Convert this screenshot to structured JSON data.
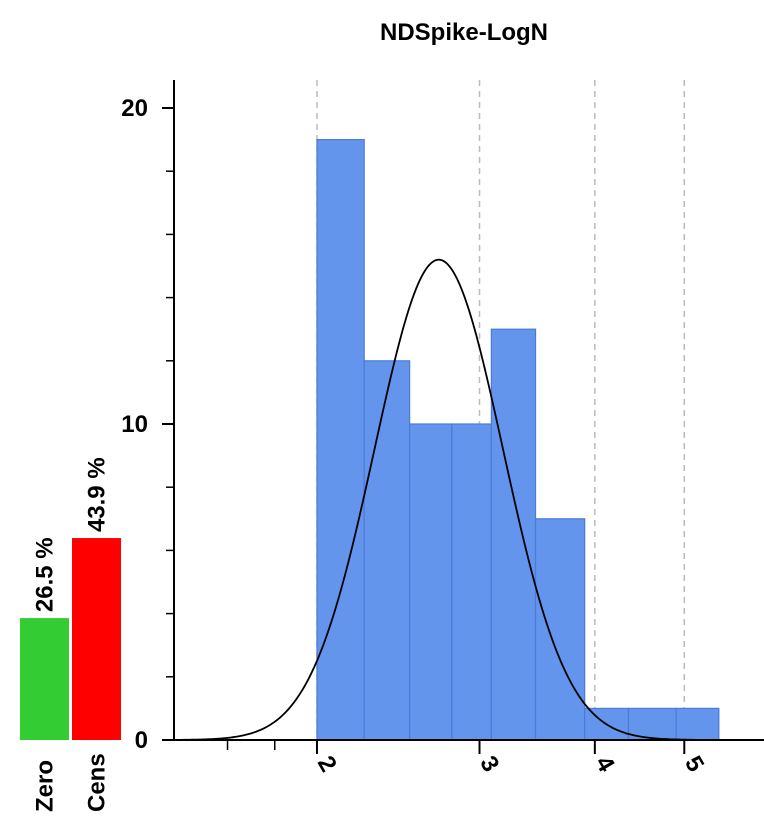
{
  "chart_data": {
    "type": "bar",
    "title": "NDSpike-LogN",
    "xaxis": {
      "scale": "log",
      "range": [
        1.4,
        6.1
      ],
      "major_ticks": [
        2,
        3,
        4,
        5
      ],
      "major_tick_labels": [
        "2",
        "3",
        "4",
        "5"
      ],
      "minor_ticks": [
        1.6,
        1.8
      ]
    },
    "yaxis": {
      "range": [
        0,
        20.5
      ],
      "tick_labels": [
        "0",
        "10",
        "20"
      ],
      "label_values": [
        0,
        10,
        20
      ],
      "minor_ticks": [
        2,
        4,
        6,
        8,
        12,
        14,
        16,
        18
      ]
    },
    "grid": "vertical dashed at major x ticks",
    "histogram": {
      "color": "#6495ED",
      "bins": [
        {
          "x0": 2.0,
          "x1": 2.25,
          "count": 19
        },
        {
          "x0": 2.25,
          "x1": 2.52,
          "count": 12
        },
        {
          "x0": 2.52,
          "x1": 2.8,
          "count": 10
        },
        {
          "x0": 2.8,
          "x1": 3.09,
          "count": 10
        },
        {
          "x0": 3.09,
          "x1": 3.45,
          "count": 13
        },
        {
          "x0": 3.45,
          "x1": 3.9,
          "count": 7
        },
        {
          "x0": 3.9,
          "x1": 4.35,
          "count": 1
        },
        {
          "x0": 4.35,
          "x1": 4.9,
          "count": 1
        },
        {
          "x0": 4.9,
          "x1": 5.45,
          "count": 1
        }
      ]
    },
    "fit_curve": {
      "type": "lognormal",
      "peak_x": 2.71,
      "peak_y": 15.2,
      "color": "#000000"
    },
    "side_bars": [
      {
        "label": "Zero",
        "percent": 26.5,
        "percent_label": "26.5 %",
        "color": "#33CC33"
      },
      {
        "label": "Cens",
        "percent": 43.9,
        "percent_label": "43.9 %",
        "color": "#FF0000"
      }
    ]
  }
}
